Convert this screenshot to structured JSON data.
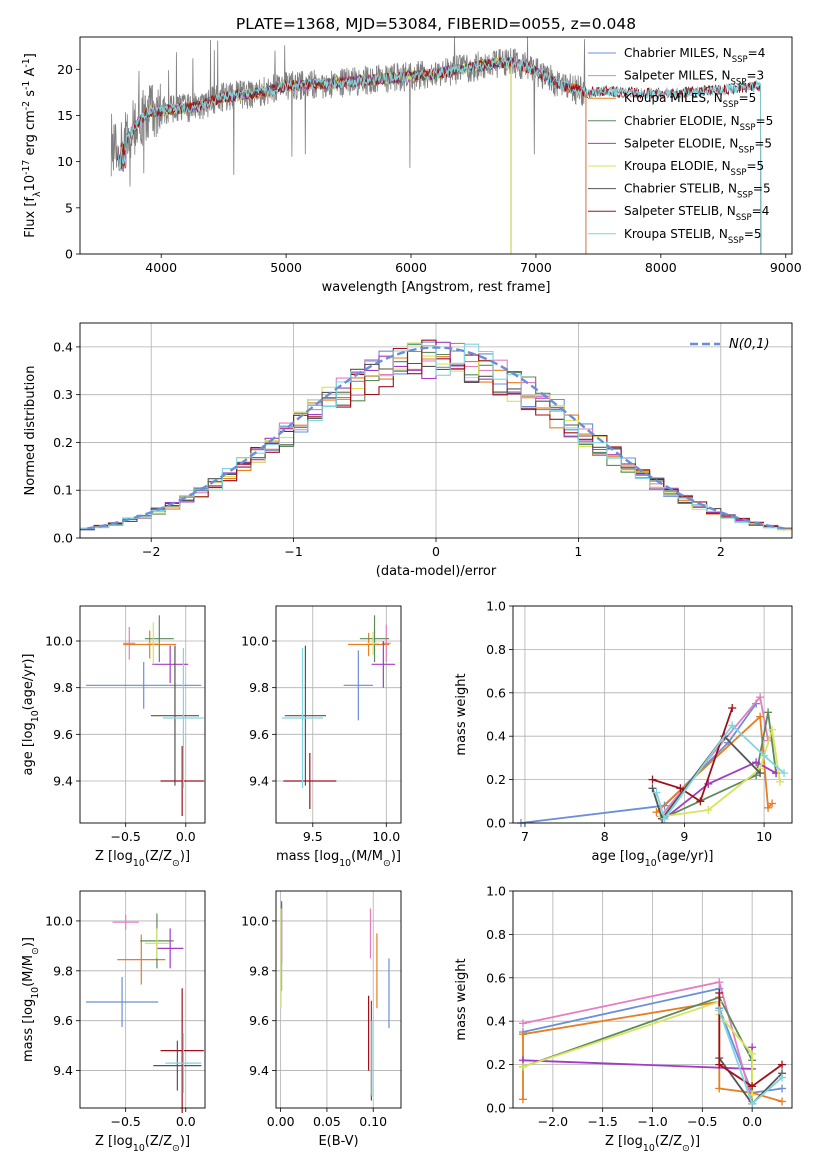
{
  "figure": {
    "title": "PLATE=1368, MJD=53084, FIBERID=0055, z=0.048"
  },
  "colors": {
    "Chabrier MILES": "#6a8fd8",
    "Salpeter MILES": "#e57ec0",
    "Kroupa MILES": "#e67e22",
    "Chabrier ELODIE": "#5b8a5b",
    "Salpeter ELODIE": "#a23cc4",
    "Kroupa ELODIE": "#d7e45c",
    "Chabrier STELIB": "#555555",
    "Salpeter STELIB": "#a0101a",
    "Kroupa STELIB": "#7fd6e0",
    "data": "#7f7f7f",
    "normal": "#6a8fd8"
  },
  "chart_data": [
    {
      "id": "spectrum",
      "type": "line",
      "xlabel": "wavelength [Angstrom, rest frame]",
      "ylabel": "Flux [f_λ10^-17 erg cm^-2 s^-1 A^-1]",
      "xlim": [
        3350,
        9050
      ],
      "ylim": [
        0,
        23.5
      ],
      "xticks": [
        4000,
        5000,
        6000,
        7000,
        8000,
        9000
      ],
      "yticks": [
        0,
        5,
        10,
        15,
        20
      ],
      "grid": false,
      "legend_position": "upper-right",
      "data_range": [
        3600,
        7400
      ],
      "continuum": [
        {
          "x": 3600,
          "y": 11
        },
        {
          "x": 3700,
          "y": 12
        },
        {
          "x": 3800,
          "y": 14
        },
        {
          "x": 3900,
          "y": 15.5
        },
        {
          "x": 4000,
          "y": 15.5
        },
        {
          "x": 4300,
          "y": 16
        },
        {
          "x": 4500,
          "y": 17
        },
        {
          "x": 4800,
          "y": 17.5
        },
        {
          "x": 5000,
          "y": 18.2
        },
        {
          "x": 5400,
          "y": 18.5
        },
        {
          "x": 5800,
          "y": 19
        },
        {
          "x": 6200,
          "y": 19.5
        },
        {
          "x": 6600,
          "y": 20.5
        },
        {
          "x": 6800,
          "y": 20.8
        },
        {
          "x": 7000,
          "y": 19.8
        },
        {
          "x": 7200,
          "y": 18.3
        },
        {
          "x": 7400,
          "y": 17.5
        },
        {
          "x": 7600,
          "y": 17.6
        },
        {
          "x": 7800,
          "y": 17.5
        },
        {
          "x": 8000,
          "y": 17.3
        },
        {
          "x": 8400,
          "y": 17.7
        },
        {
          "x": 8800,
          "y": 18.2
        }
      ],
      "legend": [
        {
          "imf": "Chabrier",
          "lib": "MILES",
          "n": "4"
        },
        {
          "imf": "Salpeter",
          "lib": "MILES",
          "n": "3"
        },
        {
          "imf": "Kroupa",
          "lib": "MILES",
          "n": "5"
        },
        {
          "imf": "Chabrier",
          "lib": "ELODIE",
          "n": "5"
        },
        {
          "imf": "Salpeter",
          "lib": "ELODIE",
          "n": "5"
        },
        {
          "imf": "Kroupa",
          "lib": "ELODIE",
          "n": "5"
        },
        {
          "imf": "Chabrier",
          "lib": "STELIB",
          "n": "5"
        },
        {
          "imf": "Salpeter",
          "lib": "STELIB",
          "n": "4"
        },
        {
          "imf": "Kroupa",
          "lib": "STELIB",
          "n": "5"
        }
      ],
      "series": [
        {
          "name": "Chabrier MILES",
          "lib": "MILES",
          "xmax": 7400
        },
        {
          "name": "Salpeter MILES",
          "lib": "MILES",
          "xmax": 7400
        },
        {
          "name": "Kroupa MILES",
          "lib": "MILES",
          "xmax": 7400
        },
        {
          "name": "Chabrier ELODIE",
          "lib": "ELODIE",
          "xmax": 6800
        },
        {
          "name": "Salpeter ELODIE",
          "lib": "ELODIE",
          "xmax": 6800
        },
        {
          "name": "Kroupa ELODIE",
          "lib": "ELODIE",
          "xmax": 6800
        },
        {
          "name": "Chabrier STELIB",
          "lib": "STELIB",
          "xmax": 8800
        },
        {
          "name": "Salpeter STELIB",
          "lib": "STELIB",
          "xmax": 8800
        },
        {
          "name": "Kroupa STELIB",
          "lib": "STELIB",
          "xmax": 8800
        }
      ]
    },
    {
      "id": "residuals",
      "type": "step",
      "xlabel": "(data-model)/error",
      "ylabel": "Normed distribution",
      "xlim": [
        -2.5,
        2.5
      ],
      "ylim": [
        0,
        0.45
      ],
      "xticks": [
        -2,
        -1,
        0,
        1,
        2
      ],
      "yticks": [
        0.0,
        0.1,
        0.2,
        0.3,
        0.4
      ],
      "grid": true,
      "legend_position": "upper-right",
      "reference_label": "N(0,1)",
      "bins": 50
    },
    {
      "id": "age_Z",
      "type": "errorbar",
      "xlabel": "Z [log10(Z/Z⊙)]",
      "ylabel": "age  [log10(age/yr)]",
      "xlim": [
        -0.88,
        0.16
      ],
      "ylim": [
        9.22,
        10.15
      ],
      "xticks": [
        -0.5,
        0.0
      ],
      "yticks": [
        9.4,
        9.6,
        9.8,
        10.0
      ],
      "grid": true,
      "points": [
        {
          "name": "Chabrier MILES",
          "x": -0.35,
          "y": 9.81,
          "xerr": 0.48,
          "yerr": 0.1
        },
        {
          "name": "Salpeter MILES",
          "x": -0.47,
          "y": 9.99,
          "xerr": 0.05,
          "yerr": 0.07
        },
        {
          "name": "Kroupa MILES",
          "x": -0.3,
          "y": 9.985,
          "xerr": 0.22,
          "yerr": 0.06
        },
        {
          "name": "Chabrier ELODIE",
          "x": -0.22,
          "y": 10.01,
          "xerr": 0.12,
          "yerr": 0.1
        },
        {
          "name": "Salpeter ELODIE",
          "x": -0.13,
          "y": 9.9,
          "xerr": 0.15,
          "yerr": 0.08
        },
        {
          "name": "Kroupa ELODIE",
          "x": -0.27,
          "y": 9.99,
          "xerr": 0.05,
          "yerr": 0.09
        },
        {
          "name": "Chabrier STELIB",
          "x": -0.09,
          "y": 9.68,
          "xerr": 0.2,
          "yerr": 0.3
        },
        {
          "name": "Salpeter STELIB",
          "x": -0.03,
          "y": 9.4,
          "xerr": 0.18,
          "yerr": 0.15
        },
        {
          "name": "Kroupa STELIB",
          "x": -0.02,
          "y": 9.67,
          "xerr": 0.17,
          "yerr": 0.3
        }
      ]
    },
    {
      "id": "age_mass",
      "type": "errorbar",
      "xlabel": "mass [log10(M/M⊙)]",
      "ylabel": "",
      "xlim": [
        9.25,
        10.1
      ],
      "ylim": [
        9.22,
        10.15
      ],
      "xticks": [
        9.5,
        10.0
      ],
      "yticks": [
        9.4,
        9.6,
        9.8,
        10.0
      ],
      "grid": true,
      "points": [
        {
          "name": "Chabrier MILES",
          "x": 9.81,
          "y": 9.81,
          "xerr": 0.1,
          "yerr": 0.15
        },
        {
          "name": "Salpeter MILES",
          "x": 10.0,
          "y": 9.99,
          "xerr": 0.03,
          "yerr": 0.08
        },
        {
          "name": "Kroupa MILES",
          "x": 9.88,
          "y": 9.985,
          "xerr": 0.14,
          "yerr": 0.05
        },
        {
          "name": "Chabrier ELODIE",
          "x": 9.92,
          "y": 10.01,
          "xerr": 0.1,
          "yerr": 0.1
        },
        {
          "name": "Salpeter ELODIE",
          "x": 9.98,
          "y": 9.9,
          "xerr": 0.08,
          "yerr": 0.1
        },
        {
          "name": "Kroupa ELODIE",
          "x": 9.91,
          "y": 9.99,
          "xerr": 0.04,
          "yerr": 0.05
        },
        {
          "name": "Chabrier STELIB",
          "x": 9.45,
          "y": 9.68,
          "xerr": 0.14,
          "yerr": 0.3
        },
        {
          "name": "Salpeter STELIB",
          "x": 9.48,
          "y": 9.4,
          "xerr": 0.18,
          "yerr": 0.12
        },
        {
          "name": "Kroupa STELIB",
          "x": 9.43,
          "y": 9.67,
          "xerr": 0.14,
          "yerr": 0.3
        }
      ]
    },
    {
      "id": "mw_age",
      "type": "line",
      "xlabel": "age  [log10(age/yr)]",
      "ylabel": "mass weight",
      "xlim": [
        6.85,
        10.35
      ],
      "ylim": [
        0,
        1.0
      ],
      "xticks": [
        7,
        8,
        9,
        10
      ],
      "yticks": [
        0.0,
        0.2,
        0.4,
        0.6,
        0.8,
        1.0
      ],
      "grid": true,
      "series": [
        {
          "name": "Chabrier MILES",
          "x": [
            6.95,
            8.75,
            9.55,
            9.9
          ],
          "y": [
            0.0,
            0.08,
            0.37,
            0.55
          ]
        },
        {
          "name": "Salpeter MILES",
          "x": [
            8.7,
            9.95,
            10.05
          ],
          "y": [
            0.03,
            0.58,
            0.38
          ]
        },
        {
          "name": "Kroupa MILES",
          "x": [
            8.65,
            9.95,
            10.05,
            10.1
          ],
          "y": [
            0.05,
            0.49,
            0.07,
            0.09
          ]
        },
        {
          "name": "Chabrier ELODIE",
          "x": [
            8.72,
            9.9,
            10.05,
            10.15
          ],
          "y": [
            0.02,
            0.22,
            0.51,
            0.23
          ]
        },
        {
          "name": "Salpeter ELODIE",
          "x": [
            8.75,
            9.3,
            9.9,
            10.15
          ],
          "y": [
            0.02,
            0.18,
            0.28,
            0.23
          ]
        },
        {
          "name": "Kroupa ELODIE",
          "x": [
            8.72,
            9.3,
            9.95,
            10.1,
            10.2
          ],
          "y": [
            0.03,
            0.06,
            0.25,
            0.43,
            0.19
          ]
        },
        {
          "name": "Chabrier STELIB",
          "x": [
            8.6,
            8.72,
            9.5,
            9.95
          ],
          "y": [
            0.16,
            0.02,
            0.4,
            0.23
          ]
        },
        {
          "name": "Salpeter STELIB",
          "x": [
            8.6,
            8.95,
            9.2,
            9.6
          ],
          "y": [
            0.2,
            0.16,
            0.1,
            0.53
          ]
        },
        {
          "name": "Kroupa STELIB",
          "x": [
            8.65,
            8.75,
            9.6,
            10.0,
            10.25
          ],
          "y": [
            0.14,
            0.02,
            0.45,
            0.31,
            0.23
          ]
        }
      ]
    },
    {
      "id": "mass_Z",
      "type": "errorbar",
      "xlabel": "Z [log10(Z/Z⊙)]",
      "ylabel": "mass [log10(M/M⊙)]",
      "xlim": [
        -0.88,
        0.16
      ],
      "ylim": [
        9.25,
        10.12
      ],
      "xticks": [
        -0.5,
        0.0
      ],
      "yticks": [
        9.4,
        9.6,
        9.8,
        10.0
      ],
      "grid": true,
      "points": [
        {
          "name": "Chabrier MILES",
          "x": -0.53,
          "y": 9.675,
          "xerr": 0.3,
          "yerr": 0.1
        },
        {
          "name": "Salpeter MILES",
          "x": -0.5,
          "y": 9.995,
          "xerr": 0.11,
          "yerr": 0.03
        },
        {
          "name": "Kroupa MILES",
          "x": -0.37,
          "y": 9.845,
          "xerr": 0.2,
          "yerr": 0.1
        },
        {
          "name": "Chabrier ELODIE",
          "x": -0.24,
          "y": 9.92,
          "xerr": 0.14,
          "yerr": 0.11
        },
        {
          "name": "Salpeter ELODIE",
          "x": -0.13,
          "y": 9.89,
          "xerr": 0.11,
          "yerr": 0.08
        },
        {
          "name": "Kroupa ELODIE",
          "x": -0.24,
          "y": 9.91,
          "xerr": 0.1,
          "yerr": 0.06
        },
        {
          "name": "Chabrier STELIB",
          "x": -0.07,
          "y": 9.42,
          "xerr": 0.2,
          "yerr": 0.1
        },
        {
          "name": "Salpeter STELIB",
          "x": -0.03,
          "y": 9.48,
          "xerr": 0.18,
          "yerr": 0.25
        },
        {
          "name": "Kroupa STELIB",
          "x": -0.02,
          "y": 9.43,
          "xerr": 0.15,
          "yerr": 0.12
        }
      ]
    },
    {
      "id": "mass_EBV",
      "type": "errorbar",
      "xlabel": "E(B-V)",
      "ylabel": "",
      "xlim": [
        -0.005,
        0.13
      ],
      "ylim": [
        9.25,
        10.12
      ],
      "xticks": [
        0.0,
        0.05,
        0.1
      ],
      "yticks": [
        9.4,
        9.6,
        9.8,
        10.0
      ],
      "grid": true,
      "points": [
        {
          "name": "Chabrier MILES",
          "x": 0.117,
          "y": 9.71,
          "xerr": 0,
          "yerr": 0.14
        },
        {
          "name": "Salpeter MILES",
          "x": 0.097,
          "y": 9.95,
          "xerr": 0,
          "yerr": 0.1
        },
        {
          "name": "Kroupa MILES",
          "x": 0.104,
          "y": 9.8,
          "xerr": 0,
          "yerr": 0.15
        },
        {
          "name": "Chabrier ELODIE",
          "x": 0.001,
          "y": 9.9,
          "xerr": 0,
          "yerr": 0.18
        },
        {
          "name": "Salpeter ELODIE",
          "x": 0.001,
          "y": 9.95,
          "xerr": 0,
          "yerr": 0.12
        },
        {
          "name": "Kroupa ELODIE",
          "x": 0.0005,
          "y": 9.85,
          "xerr": 0,
          "yerr": 0.2
        },
        {
          "name": "Chabrier STELIB",
          "x": 0.098,
          "y": 9.48,
          "xerr": 0,
          "yerr": 0.2
        },
        {
          "name": "Salpeter STELIB",
          "x": 0.095,
          "y": 9.55,
          "xerr": 0,
          "yerr": 0.15
        },
        {
          "name": "Kroupa STELIB",
          "x": 0.0985,
          "y": 9.45,
          "xerr": 0,
          "yerr": 0.15
        }
      ]
    },
    {
      "id": "mw_Z",
      "type": "line",
      "xlabel": "Z [log10(Z/Z⊙)]",
      "ylabel": "mass weight",
      "xlim": [
        -2.4,
        0.4
      ],
      "ylim": [
        0,
        1.0
      ],
      "xticks": [
        -2.0,
        -1.5,
        -1.0,
        -0.5,
        0.0
      ],
      "yticks": [
        0.0,
        0.2,
        0.4,
        0.6,
        0.8,
        1.0
      ],
      "grid": true,
      "series": [
        {
          "name": "Chabrier MILES",
          "x": [
            -2.3,
            -0.33,
            -0.33,
            0.0,
            0.3
          ],
          "y": [
            0.35,
            0.55,
            0.46,
            0.07,
            0.09
          ]
        },
        {
          "name": "Salpeter MILES",
          "x": [
            -2.3,
            -0.33,
            0.0
          ],
          "y": [
            0.39,
            0.58,
            0.03
          ]
        },
        {
          "name": "Kroupa MILES",
          "x": [
            -2.3,
            -2.3,
            -0.33,
            -0.33,
            0.0,
            0.3
          ],
          "y": [
            0.04,
            0.34,
            0.49,
            0.09,
            0.07,
            0.03
          ]
        },
        {
          "name": "Chabrier ELODIE",
          "x": [
            -2.3,
            -0.33,
            0.0,
            0.0
          ],
          "y": [
            0.19,
            0.51,
            0.22,
            0.02
          ]
        },
        {
          "name": "Salpeter ELODIE",
          "x": [
            -2.3,
            0.0,
            0.0
          ],
          "y": [
            0.22,
            0.18,
            0.28
          ]
        },
        {
          "name": "Kroupa ELODIE",
          "x": [
            -2.3,
            -0.33,
            -0.33,
            0.0,
            0.0
          ],
          "y": [
            0.19,
            0.49,
            0.43,
            0.25,
            0.06
          ]
        },
        {
          "name": "Chabrier STELIB",
          "x": [
            -0.33,
            0.0,
            0.3
          ],
          "y": [
            0.23,
            0.02,
            0.16
          ]
        },
        {
          "name": "Salpeter STELIB",
          "x": [
            -0.33,
            -0.33,
            0.0,
            0.3
          ],
          "y": [
            0.53,
            0.2,
            0.1,
            0.2
          ]
        },
        {
          "name": "Kroupa STELIB",
          "x": [
            -0.33,
            0.0,
            0.3
          ],
          "y": [
            0.45,
            0.02,
            0.14
          ]
        }
      ]
    }
  ]
}
